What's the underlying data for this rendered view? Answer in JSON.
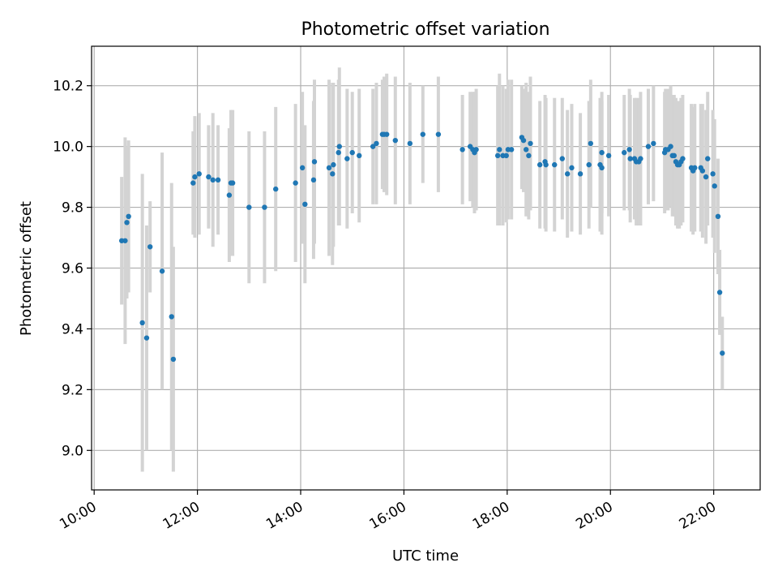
{
  "chart_data": {
    "type": "scatter",
    "title": "Photometric offset variation",
    "xlabel": "UTC time",
    "ylabel": "Photometric offset",
    "x_ticks": [
      "10:00",
      "12:00",
      "14:00",
      "16:00",
      "18:00",
      "20:00",
      "22:00"
    ],
    "y_ticks": [
      "9.0",
      "9.2",
      "9.4",
      "9.6",
      "9.8",
      "10.0",
      "10.2"
    ],
    "xlim": [
      "09:57",
      "22:54"
    ],
    "ylim": [
      8.87,
      10.33
    ],
    "grid": true,
    "point_color": "#1f77b4",
    "errorbar_color": "#d3d3d3",
    "series": [
      {
        "points": [
          {
            "t": "10:32",
            "y": 9.69,
            "err": 0.21
          },
          {
            "t": "10:36",
            "y": 9.69,
            "err": 0.34
          },
          {
            "t": "10:38",
            "y": 9.75,
            "err": 0.25
          },
          {
            "t": "10:40",
            "y": 9.77,
            "err": 0.25
          },
          {
            "t": "10:56",
            "y": 9.42,
            "err": 0.49
          },
          {
            "t": "11:01",
            "y": 9.37,
            "err": 0.37
          },
          {
            "t": "11:05",
            "y": 9.67,
            "err": 0.15
          },
          {
            "t": "11:19",
            "y": 9.59,
            "err": 0.39
          },
          {
            "t": "11:30",
            "y": 9.44,
            "err": 0.44
          },
          {
            "t": "11:32",
            "y": 9.3,
            "err": 0.37
          },
          {
            "t": "11:55",
            "y": 9.88,
            "err": 0.17
          },
          {
            "t": "11:57",
            "y": 9.9,
            "err": 0.2
          },
          {
            "t": "12:02",
            "y": 9.91,
            "err": 0.2
          },
          {
            "t": "12:13",
            "y": 9.9,
            "err": 0.17
          },
          {
            "t": "12:18",
            "y": 9.89,
            "err": 0.22
          },
          {
            "t": "12:24",
            "y": 9.89,
            "err": 0.18
          },
          {
            "t": "12:37",
            "y": 9.84,
            "err": 0.22
          },
          {
            "t": "12:39",
            "y": 9.88,
            "err": 0.24
          },
          {
            "t": "12:41",
            "y": 9.88,
            "err": 0.24
          },
          {
            "t": "13:00",
            "y": 9.8,
            "err": 0.25
          },
          {
            "t": "13:18",
            "y": 9.8,
            "err": 0.25
          },
          {
            "t": "13:31",
            "y": 9.86,
            "err": 0.27
          },
          {
            "t": "13:54",
            "y": 9.88,
            "err": 0.26
          },
          {
            "t": "14:02",
            "y": 9.93,
            "err": 0.25
          },
          {
            "t": "14:05",
            "y": 9.81,
            "err": 0.26
          },
          {
            "t": "14:15",
            "y": 9.89,
            "err": 0.26
          },
          {
            "t": "14:16",
            "y": 9.95,
            "err": 0.27
          },
          {
            "t": "14:33",
            "y": 9.93,
            "err": 0.29
          },
          {
            "t": "14:37",
            "y": 9.91,
            "err": 0.3
          },
          {
            "t": "14:38",
            "y": 9.94,
            "err": 0.27
          },
          {
            "t": "14:44",
            "y": 9.98,
            "err": 0.24
          },
          {
            "t": "14:45",
            "y": 10.0,
            "err": 0.26
          },
          {
            "t": "14:54",
            "y": 9.96,
            "err": 0.23
          },
          {
            "t": "15:00",
            "y": 9.98,
            "err": 0.2
          },
          {
            "t": "15:08",
            "y": 9.97,
            "err": 0.22
          },
          {
            "t": "15:24",
            "y": 10.0,
            "err": 0.19
          },
          {
            "t": "15:28",
            "y": 10.01,
            "err": 0.2
          },
          {
            "t": "15:35",
            "y": 10.04,
            "err": 0.18
          },
          {
            "t": "15:37",
            "y": 10.04,
            "err": 0.19
          },
          {
            "t": "15:40",
            "y": 10.04,
            "err": 0.2
          },
          {
            "t": "15:50",
            "y": 10.02,
            "err": 0.21
          },
          {
            "t": "16:07",
            "y": 10.01,
            "err": 0.2
          },
          {
            "t": "16:22",
            "y": 10.04,
            "err": 0.16
          },
          {
            "t": "16:40",
            "y": 10.04,
            "err": 0.19
          },
          {
            "t": "17:08",
            "y": 9.99,
            "err": 0.18
          },
          {
            "t": "17:17",
            "y": 10.0,
            "err": 0.18
          },
          {
            "t": "17:20",
            "y": 9.99,
            "err": 0.19
          },
          {
            "t": "17:22",
            "y": 9.98,
            "err": 0.2
          },
          {
            "t": "17:24",
            "y": 9.99,
            "err": 0.2
          },
          {
            "t": "17:49",
            "y": 9.97,
            "err": 0.23
          },
          {
            "t": "17:51",
            "y": 9.99,
            "err": 0.25
          },
          {
            "t": "17:55",
            "y": 9.97,
            "err": 0.23
          },
          {
            "t": "17:59",
            "y": 9.97,
            "err": 0.22
          },
          {
            "t": "18:01",
            "y": 9.99,
            "err": 0.23
          },
          {
            "t": "18:05",
            "y": 9.99,
            "err": 0.23
          },
          {
            "t": "18:17",
            "y": 10.03,
            "err": 0.17
          },
          {
            "t": "18:19",
            "y": 10.02,
            "err": 0.17
          },
          {
            "t": "18:22",
            "y": 9.99,
            "err": 0.22
          },
          {
            "t": "18:25",
            "y": 9.97,
            "err": 0.21
          },
          {
            "t": "18:27",
            "y": 10.01,
            "err": 0.22
          },
          {
            "t": "18:38",
            "y": 9.94,
            "err": 0.21
          },
          {
            "t": "18:44",
            "y": 9.95,
            "err": 0.22
          },
          {
            "t": "18:45",
            "y": 9.94,
            "err": 0.22
          },
          {
            "t": "18:55",
            "y": 9.94,
            "err": 0.22
          },
          {
            "t": "19:04",
            "y": 9.96,
            "err": 0.2
          },
          {
            "t": "19:10",
            "y": 9.91,
            "err": 0.21
          },
          {
            "t": "19:15",
            "y": 9.93,
            "err": 0.21
          },
          {
            "t": "19:25",
            "y": 9.91,
            "err": 0.2
          },
          {
            "t": "19:35",
            "y": 9.94,
            "err": 0.21
          },
          {
            "t": "19:37",
            "y": 10.01,
            "err": 0.21
          },
          {
            "t": "19:48",
            "y": 9.94,
            "err": 0.22
          },
          {
            "t": "19:50",
            "y": 9.93,
            "err": 0.22
          },
          {
            "t": "19:50",
            "y": 9.98,
            "err": 0.2
          },
          {
            "t": "19:58",
            "y": 9.97,
            "err": 0.2
          },
          {
            "t": "20:16",
            "y": 9.98,
            "err": 0.19
          },
          {
            "t": "20:22",
            "y": 9.99,
            "err": 0.2
          },
          {
            "t": "20:23",
            "y": 9.96,
            "err": 0.21
          },
          {
            "t": "20:28",
            "y": 9.96,
            "err": 0.2
          },
          {
            "t": "20:30",
            "y": 9.95,
            "err": 0.21
          },
          {
            "t": "20:33",
            "y": 9.95,
            "err": 0.21
          },
          {
            "t": "20:35",
            "y": 9.96,
            "err": 0.22
          },
          {
            "t": "20:44",
            "y": 10.0,
            "err": 0.19
          },
          {
            "t": "20:50",
            "y": 10.01,
            "err": 0.19
          },
          {
            "t": "21:03",
            "y": 9.98,
            "err": 0.2
          },
          {
            "t": "21:04",
            "y": 9.99,
            "err": 0.2
          },
          {
            "t": "21:07",
            "y": 9.99,
            "err": 0.2
          },
          {
            "t": "21:10",
            "y": 10.0,
            "err": 0.2
          },
          {
            "t": "21:12",
            "y": 9.97,
            "err": 0.2
          },
          {
            "t": "21:14",
            "y": 9.97,
            "err": 0.2
          },
          {
            "t": "21:16",
            "y": 9.95,
            "err": 0.21
          },
          {
            "t": "21:18",
            "y": 9.94,
            "err": 0.21
          },
          {
            "t": "21:20",
            "y": 9.94,
            "err": 0.21
          },
          {
            "t": "21:22",
            "y": 9.95,
            "err": 0.21
          },
          {
            "t": "21:24",
            "y": 9.96,
            "err": 0.21
          },
          {
            "t": "21:34",
            "y": 9.93,
            "err": 0.21
          },
          {
            "t": "21:36",
            "y": 9.92,
            "err": 0.21
          },
          {
            "t": "21:38",
            "y": 9.93,
            "err": 0.21
          },
          {
            "t": "21:45",
            "y": 9.93,
            "err": 0.21
          },
          {
            "t": "21:47",
            "y": 9.92,
            "err": 0.22
          },
          {
            "t": "21:51",
            "y": 9.9,
            "err": 0.22
          },
          {
            "t": "21:53",
            "y": 9.96,
            "err": 0.22
          },
          {
            "t": "21:59",
            "y": 9.91,
            "err": 0.21
          },
          {
            "t": "22:01",
            "y": 9.87,
            "err": 0.22
          },
          {
            "t": "22:05",
            "y": 9.77,
            "err": 0.19
          },
          {
            "t": "22:07",
            "y": 9.52,
            "err": 0.14
          },
          {
            "t": "22:10",
            "y": 9.32,
            "err": 0.12
          }
        ]
      }
    ]
  }
}
